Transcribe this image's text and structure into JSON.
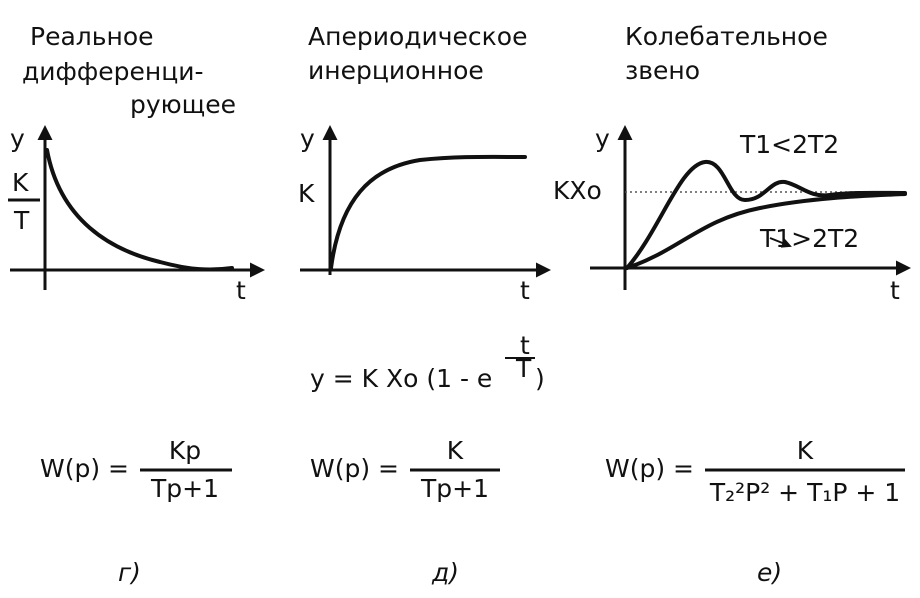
{
  "panels": [
    {
      "title_lines": [
        "Реальное",
        "дифференци-",
        "рующее"
      ],
      "y_axis": "y",
      "x_axis": "t",
      "level_numerator": "K",
      "level_denominator": "T",
      "formula": {
        "lhs": "W(p) =",
        "numerator": "Kp",
        "denominator": "Tp+1"
      },
      "label": "г)"
    },
    {
      "title_lines": [
        "Апериодическое",
        "инерционное"
      ],
      "y_axis": "y",
      "x_axis": "t",
      "level": "K",
      "formula": {
        "lhs": "W(p) =",
        "numerator": "K",
        "denominator": "Tp+1"
      },
      "label": "д)"
    },
    {
      "title_lines": [
        "Колебательное",
        "звено"
      ],
      "y_axis": "y",
      "x_axis": "t",
      "level": "KXo",
      "curve_labels": [
        "T1<2T2",
        "T1>2T2"
      ],
      "formula": {
        "lhs": "W(p) =",
        "numerator": "K",
        "denominator": "T₂²P² + T₁P + 1"
      },
      "label": "е)"
    }
  ],
  "response_formula": {
    "main": "y = K Xo (1 - e",
    "exp_numerator": "t",
    "exp_denominator": "T",
    "close": ")"
  }
}
